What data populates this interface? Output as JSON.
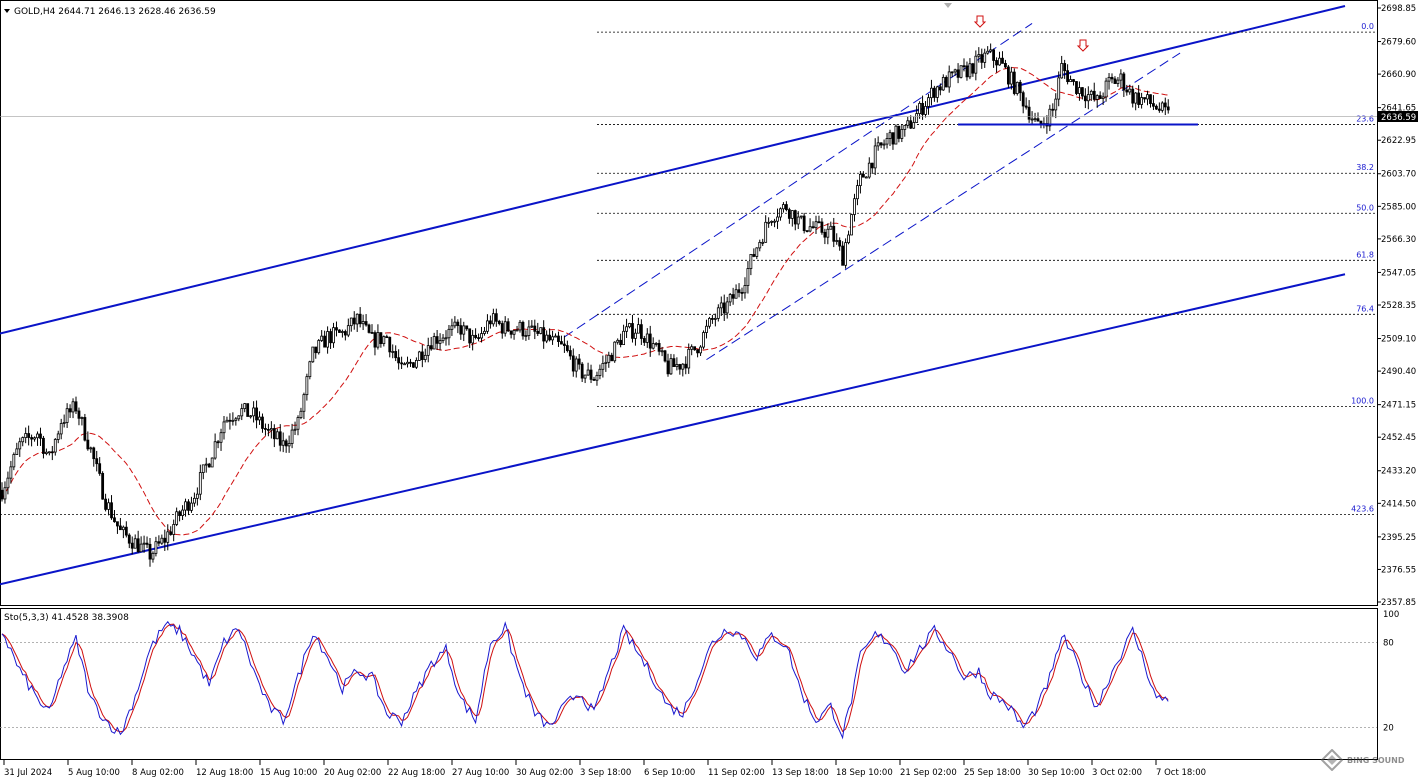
{
  "header": {
    "symbol_info": "GOLD,H4  2644.71 2646.13 2628.46 2636.59"
  },
  "indicator": {
    "label": "Sto(5,3,3) 41.4528 38.3908"
  },
  "watermark": {
    "text": "BING SOUND"
  },
  "colors": {
    "candle": "#000000",
    "channel": "#0a14c8",
    "ma": "#d01010",
    "fib": "#000000",
    "stoch_main": "#1a1ad0",
    "stoch_signal": "#d01010",
    "arrow": "#d01010",
    "grid_line": "#999999"
  },
  "chart_data": {
    "type": "candlestick",
    "timeframe": "H4",
    "price_axis": {
      "ticks": [
        "2698.85",
        "2679.60",
        "2660.90",
        "2641.65",
        "2622.95",
        "2603.70",
        "2585.00",
        "2566.30",
        "2547.05",
        "2528.35",
        "2509.10",
        "2490.40",
        "2471.15",
        "2452.45",
        "2433.20",
        "2414.50",
        "2395.25",
        "2376.55",
        "2357.85"
      ],
      "current_price": "2636.59",
      "range": [
        2357.85,
        2698.85
      ]
    },
    "time_axis": {
      "ticks": [
        "31 Jul 2024",
        "5 Aug 10:00",
        "8 Aug 02:00",
        "12 Aug 18:00",
        "15 Aug 10:00",
        "20 Aug 02:00",
        "22 Aug 18:00",
        "27 Aug 10:00",
        "30 Aug 02:00",
        "3 Sep 18:00",
        "6 Sep 10:00",
        "11 Sep 02:00",
        "13 Sep 18:00",
        "18 Sep 10:00",
        "21 Sep 02:00",
        "25 Sep 18:00",
        "30 Sep 10:00",
        "3 Oct 02:00",
        "7 Oct 18:00"
      ]
    },
    "anchors": {
      "note": "approximate close path (candle index, price)",
      "points": [
        [
          0,
          2422
        ],
        [
          6,
          2448
        ],
        [
          12,
          2455
        ],
        [
          16,
          2440
        ],
        [
          20,
          2462
        ],
        [
          25,
          2470
        ],
        [
          30,
          2445
        ],
        [
          35,
          2416
        ],
        [
          40,
          2398
        ],
        [
          45,
          2392
        ],
        [
          50,
          2385
        ],
        [
          55,
          2394
        ],
        [
          60,
          2408
        ],
        [
          65,
          2420
        ],
        [
          70,
          2440
        ],
        [
          75,
          2462
        ],
        [
          80,
          2468
        ],
        [
          85,
          2465
        ],
        [
          90,
          2455
        ],
        [
          95,
          2448
        ],
        [
          100,
          2460
        ],
        [
          105,
          2500
        ],
        [
          110,
          2510
        ],
        [
          115,
          2512
        ],
        [
          120,
          2520
        ],
        [
          125,
          2508
        ],
        [
          130,
          2510
        ],
        [
          135,
          2490
        ],
        [
          140,
          2498
        ],
        [
          145,
          2508
        ],
        [
          150,
          2512
        ],
        [
          155,
          2515
        ],
        [
          160,
          2506
        ],
        [
          165,
          2520
        ],
        [
          170,
          2515
        ],
        [
          175,
          2515
        ],
        [
          180,
          2512
        ],
        [
          185,
          2508
        ],
        [
          190,
          2503
        ],
        [
          195,
          2490
        ],
        [
          200,
          2487
        ],
        [
          205,
          2498
        ],
        [
          210,
          2512
        ],
        [
          215,
          2515
        ],
        [
          220,
          2505
        ],
        [
          225,
          2492
        ],
        [
          230,
          2495
        ],
        [
          235,
          2505
        ],
        [
          240,
          2520
        ],
        [
          245,
          2528
        ],
        [
          250,
          2540
        ],
        [
          255,
          2562
        ],
        [
          260,
          2580
        ],
        [
          265,
          2585
        ],
        [
          270,
          2575
        ],
        [
          275,
          2572
        ],
        [
          280,
          2570
        ],
        [
          284,
          2556
        ],
        [
          287,
          2580
        ],
        [
          290,
          2600
        ],
        [
          295,
          2615
        ],
        [
          300,
          2625
        ],
        [
          305,
          2628
        ],
        [
          310,
          2640
        ],
        [
          315,
          2652
        ],
        [
          320,
          2658
        ],
        [
          325,
          2662
        ],
        [
          330,
          2668
        ],
        [
          333,
          2672
        ],
        [
          337,
          2668
        ],
        [
          340,
          2660
        ],
        [
          345,
          2646
        ],
        [
          350,
          2630
        ],
        [
          355,
          2640
        ],
        [
          358,
          2665
        ],
        [
          362,
          2655
        ],
        [
          366,
          2650
        ],
        [
          370,
          2645
        ],
        [
          374,
          2656
        ],
        [
          378,
          2658
        ],
        [
          382,
          2648
        ],
        [
          386,
          2646
        ],
        [
          390,
          2642
        ],
        [
          394,
          2637
        ]
      ]
    },
    "fibonacci": [
      {
        "level": "0.0",
        "price": 2685
      },
      {
        "level": "23.6",
        "price": 2632
      },
      {
        "level": "38.2",
        "price": 2604
      },
      {
        "level": "50.0",
        "price": 2581
      },
      {
        "level": "61.8",
        "price": 2554
      },
      {
        "level": "76.4",
        "price": 2523
      },
      {
        "level": "100.0",
        "price": 2470
      },
      {
        "level": "423.6",
        "price": 2408
      }
    ],
    "horizontal_line_price": 2632,
    "channel": {
      "upper": [
        [
          0,
          2512
        ],
        [
          1345,
          2700
        ]
      ],
      "lower": [
        [
          0,
          2368
        ],
        [
          1345,
          2546
        ]
      ]
    },
    "stochastic": {
      "params": "5,3,3",
      "main": 41.4528,
      "signal": 38.3908,
      "levels": [
        "100",
        "80",
        "20"
      ],
      "anchors": [
        [
          0,
          88
        ],
        [
          6,
          60
        ],
        [
          12,
          40
        ],
        [
          16,
          30
        ],
        [
          20,
          58
        ],
        [
          25,
          82
        ],
        [
          30,
          40
        ],
        [
          35,
          25
        ],
        [
          40,
          15
        ],
        [
          45,
          42
        ],
        [
          50,
          75
        ],
        [
          55,
          92
        ],
        [
          60,
          88
        ],
        [
          65,
          70
        ],
        [
          70,
          50
        ],
        [
          75,
          80
        ],
        [
          80,
          90
        ],
        [
          85,
          60
        ],
        [
          90,
          35
        ],
        [
          95,
          25
        ],
        [
          100,
          55
        ],
        [
          105,
          88
        ],
        [
          110,
          70
        ],
        [
          115,
          48
        ],
        [
          120,
          60
        ],
        [
          125,
          55
        ],
        [
          130,
          30
        ],
        [
          135,
          25
        ],
        [
          140,
          45
        ],
        [
          145,
          65
        ],
        [
          150,
          75
        ],
        [
          155,
          40
        ],
        [
          160,
          25
        ],
        [
          165,
          80
        ],
        [
          170,
          90
        ],
        [
          175,
          55
        ],
        [
          180,
          30
        ],
        [
          185,
          20
        ],
        [
          190,
          35
        ],
        [
          195,
          45
        ],
        [
          200,
          30
        ],
        [
          205,
          60
        ],
        [
          210,
          88
        ],
        [
          215,
          72
        ],
        [
          220,
          55
        ],
        [
          225,
          35
        ],
        [
          230,
          30
        ],
        [
          235,
          55
        ],
        [
          240,
          80
        ],
        [
          245,
          90
        ],
        [
          250,
          85
        ],
        [
          255,
          70
        ],
        [
          260,
          85
        ],
        [
          265,
          78
        ],
        [
          270,
          45
        ],
        [
          275,
          25
        ],
        [
          280,
          35
        ],
        [
          284,
          15
        ],
        [
          287,
          40
        ],
        [
          290,
          70
        ],
        [
          295,
          85
        ],
        [
          300,
          80
        ],
        [
          305,
          60
        ],
        [
          310,
          75
        ],
        [
          315,
          88
        ],
        [
          320,
          75
        ],
        [
          325,
          55
        ],
        [
          330,
          60
        ],
        [
          333,
          45
        ],
        [
          337,
          40
        ],
        [
          340,
          35
        ],
        [
          345,
          20
        ],
        [
          350,
          35
        ],
        [
          355,
          60
        ],
        [
          358,
          85
        ],
        [
          362,
          70
        ],
        [
          366,
          50
        ],
        [
          370,
          35
        ],
        [
          374,
          55
        ],
        [
          378,
          72
        ],
        [
          382,
          88
        ],
        [
          386,
          65
        ],
        [
          390,
          40
        ],
        [
          394,
          41
        ]
      ]
    }
  }
}
